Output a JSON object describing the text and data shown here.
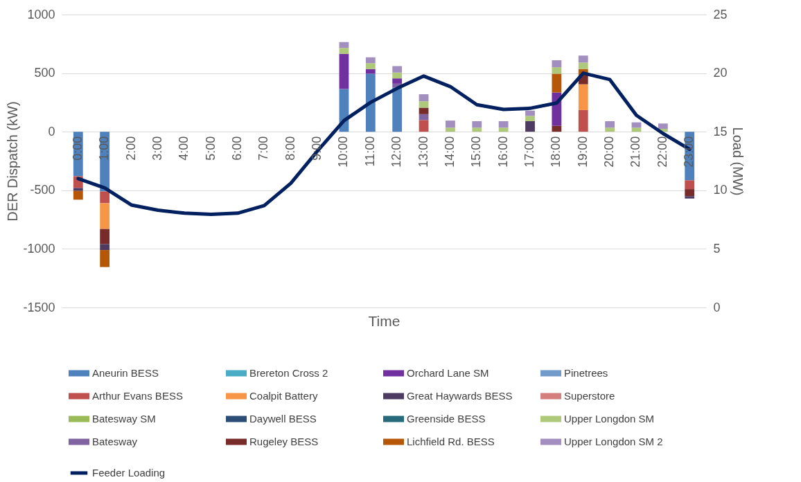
{
  "chart_data": {
    "type": "bar",
    "stacked": true,
    "xlabel": "Time",
    "ylabel": "DER Dispatch (kW)",
    "y2label": "Load (MW)",
    "categories": [
      "0:00",
      "1:00",
      "2:00",
      "3:00",
      "4:00",
      "5:00",
      "6:00",
      "7:00",
      "8:00",
      "9:00",
      "10:00",
      "11:00",
      "12:00",
      "13:00",
      "14:00",
      "15:00",
      "16:00",
      "17:00",
      "18:00",
      "19:00",
      "20:00",
      "21:00",
      "22:00",
      "23:00"
    ],
    "ylim": [
      -1500,
      1000
    ],
    "yticks": [
      -1500,
      -1000,
      -500,
      0,
      500,
      1000
    ],
    "y2lim": [
      0,
      25
    ],
    "y2ticks": [
      0,
      5,
      10,
      15,
      20,
      25
    ],
    "grid": "y",
    "legend": "bottom",
    "series": [
      {
        "name": "Aneurin BESS",
        "color": "#4f81bd",
        "values": [
          -380,
          -510,
          null,
          null,
          null,
          null,
          null,
          null,
          null,
          null,
          365,
          495,
          375,
          null,
          null,
          null,
          null,
          null,
          null,
          null,
          null,
          null,
          null,
          -415
        ]
      },
      {
        "name": "Arthur Evans BESS",
        "color": "#c0504d",
        "values": [
          -100,
          -100,
          null,
          null,
          null,
          null,
          null,
          null,
          null,
          null,
          null,
          null,
          null,
          100,
          null,
          null,
          null,
          null,
          null,
          185,
          null,
          null,
          null,
          -75
        ]
      },
      {
        "name": "Batesway SM",
        "color": "#9bbb59",
        "values": [
          null,
          null,
          null,
          null,
          null,
          null,
          null,
          null,
          null,
          null,
          null,
          null,
          null,
          null,
          null,
          null,
          null,
          null,
          null,
          null,
          null,
          null,
          null,
          null
        ]
      },
      {
        "name": "Batesway",
        "color": "#8064a2",
        "values": [
          null,
          null,
          null,
          null,
          null,
          null,
          null,
          null,
          null,
          null,
          null,
          null,
          35,
          50,
          null,
          null,
          null,
          null,
          null,
          null,
          null,
          null,
          null,
          null
        ]
      },
      {
        "name": "Brereton Cross 2",
        "color": "#4bacc6",
        "values": [
          null,
          null,
          null,
          null,
          null,
          null,
          null,
          null,
          null,
          null,
          null,
          null,
          null,
          null,
          null,
          null,
          null,
          null,
          null,
          null,
          null,
          null,
          null,
          null
        ]
      },
      {
        "name": "Coalpit Battery",
        "color": "#f79646",
        "values": [
          null,
          -220,
          null,
          null,
          null,
          null,
          null,
          null,
          null,
          null,
          null,
          null,
          null,
          null,
          null,
          null,
          null,
          null,
          null,
          220,
          null,
          null,
          null,
          null
        ]
      },
      {
        "name": "Daywell BESS",
        "color": "#2c4d75",
        "values": [
          null,
          null,
          null,
          null,
          null,
          null,
          null,
          null,
          null,
          null,
          null,
          null,
          null,
          null,
          null,
          null,
          null,
          null,
          null,
          null,
          null,
          null,
          null,
          null
        ]
      },
      {
        "name": "Rugeley BESS",
        "color": "#772c2a",
        "values": [
          null,
          -130,
          null,
          null,
          null,
          null,
          null,
          null,
          null,
          null,
          null,
          null,
          null,
          55,
          null,
          null,
          null,
          null,
          50,
          75,
          null,
          null,
          null,
          -60
        ]
      },
      {
        "name": "Orchard Lane SM",
        "color": "#7030a0",
        "values": [
          null,
          null,
          null,
          null,
          null,
          null,
          null,
          null,
          null,
          null,
          300,
          40,
          45,
          null,
          null,
          null,
          null,
          null,
          285,
          null,
          null,
          null,
          null,
          null
        ]
      },
      {
        "name": "Great Haywards BESS",
        "color": "#4d3b62",
        "values": [
          -25,
          -50,
          null,
          null,
          null,
          null,
          null,
          null,
          null,
          null,
          null,
          null,
          null,
          null,
          null,
          null,
          null,
          90,
          null,
          null,
          null,
          null,
          null,
          -20
        ]
      },
      {
        "name": "Greenside BESS",
        "color": "#276a7c",
        "values": [
          null,
          null,
          null,
          null,
          null,
          null,
          null,
          null,
          null,
          null,
          null,
          null,
          null,
          null,
          null,
          null,
          null,
          null,
          null,
          null,
          null,
          null,
          null,
          null
        ]
      },
      {
        "name": "Lichfield Rd. BESS",
        "color": "#b65708",
        "values": [
          -75,
          -145,
          null,
          null,
          null,
          null,
          null,
          null,
          null,
          null,
          null,
          null,
          null,
          null,
          null,
          null,
          null,
          null,
          160,
          55,
          null,
          null,
          null,
          null
        ]
      },
      {
        "name": "Pinetrees",
        "color": "#729aca",
        "values": [
          null,
          null,
          null,
          null,
          null,
          null,
          null,
          null,
          null,
          null,
          null,
          null,
          null,
          null,
          null,
          null,
          null,
          null,
          null,
          null,
          null,
          null,
          null,
          null
        ]
      },
      {
        "name": "Superstore",
        "color": "#d47f7d",
        "values": [
          null,
          null,
          null,
          null,
          null,
          null,
          null,
          null,
          null,
          null,
          null,
          null,
          null,
          null,
          null,
          null,
          null,
          null,
          null,
          null,
          null,
          null,
          null,
          null
        ]
      },
      {
        "name": "Upper Longdon SM",
        "color": "#afc97a",
        "values": [
          null,
          null,
          null,
          null,
          null,
          null,
          null,
          null,
          null,
          null,
          50,
          50,
          50,
          55,
          35,
          35,
          35,
          45,
          55,
          55,
          35,
          35,
          25,
          null
        ]
      },
      {
        "name": "Upper Longdon SM 2",
        "color": "#a28fc0",
        "values": [
          null,
          null,
          null,
          null,
          null,
          null,
          null,
          null,
          null,
          null,
          50,
          50,
          55,
          60,
          60,
          55,
          55,
          45,
          60,
          60,
          55,
          45,
          45,
          null
        ]
      },
      {
        "name": "Feeder Loading",
        "type": "line",
        "axis": "y2",
        "color": "#002060",
        "values": [
          11.0,
          10.2,
          8.75,
          8.3,
          8.05,
          7.95,
          8.05,
          8.7,
          10.6,
          13.35,
          15.95,
          17.5,
          18.7,
          19.75,
          18.85,
          17.3,
          16.9,
          17.0,
          17.45,
          20.0,
          19.45,
          16.4,
          14.85,
          13.5
        ]
      }
    ]
  }
}
